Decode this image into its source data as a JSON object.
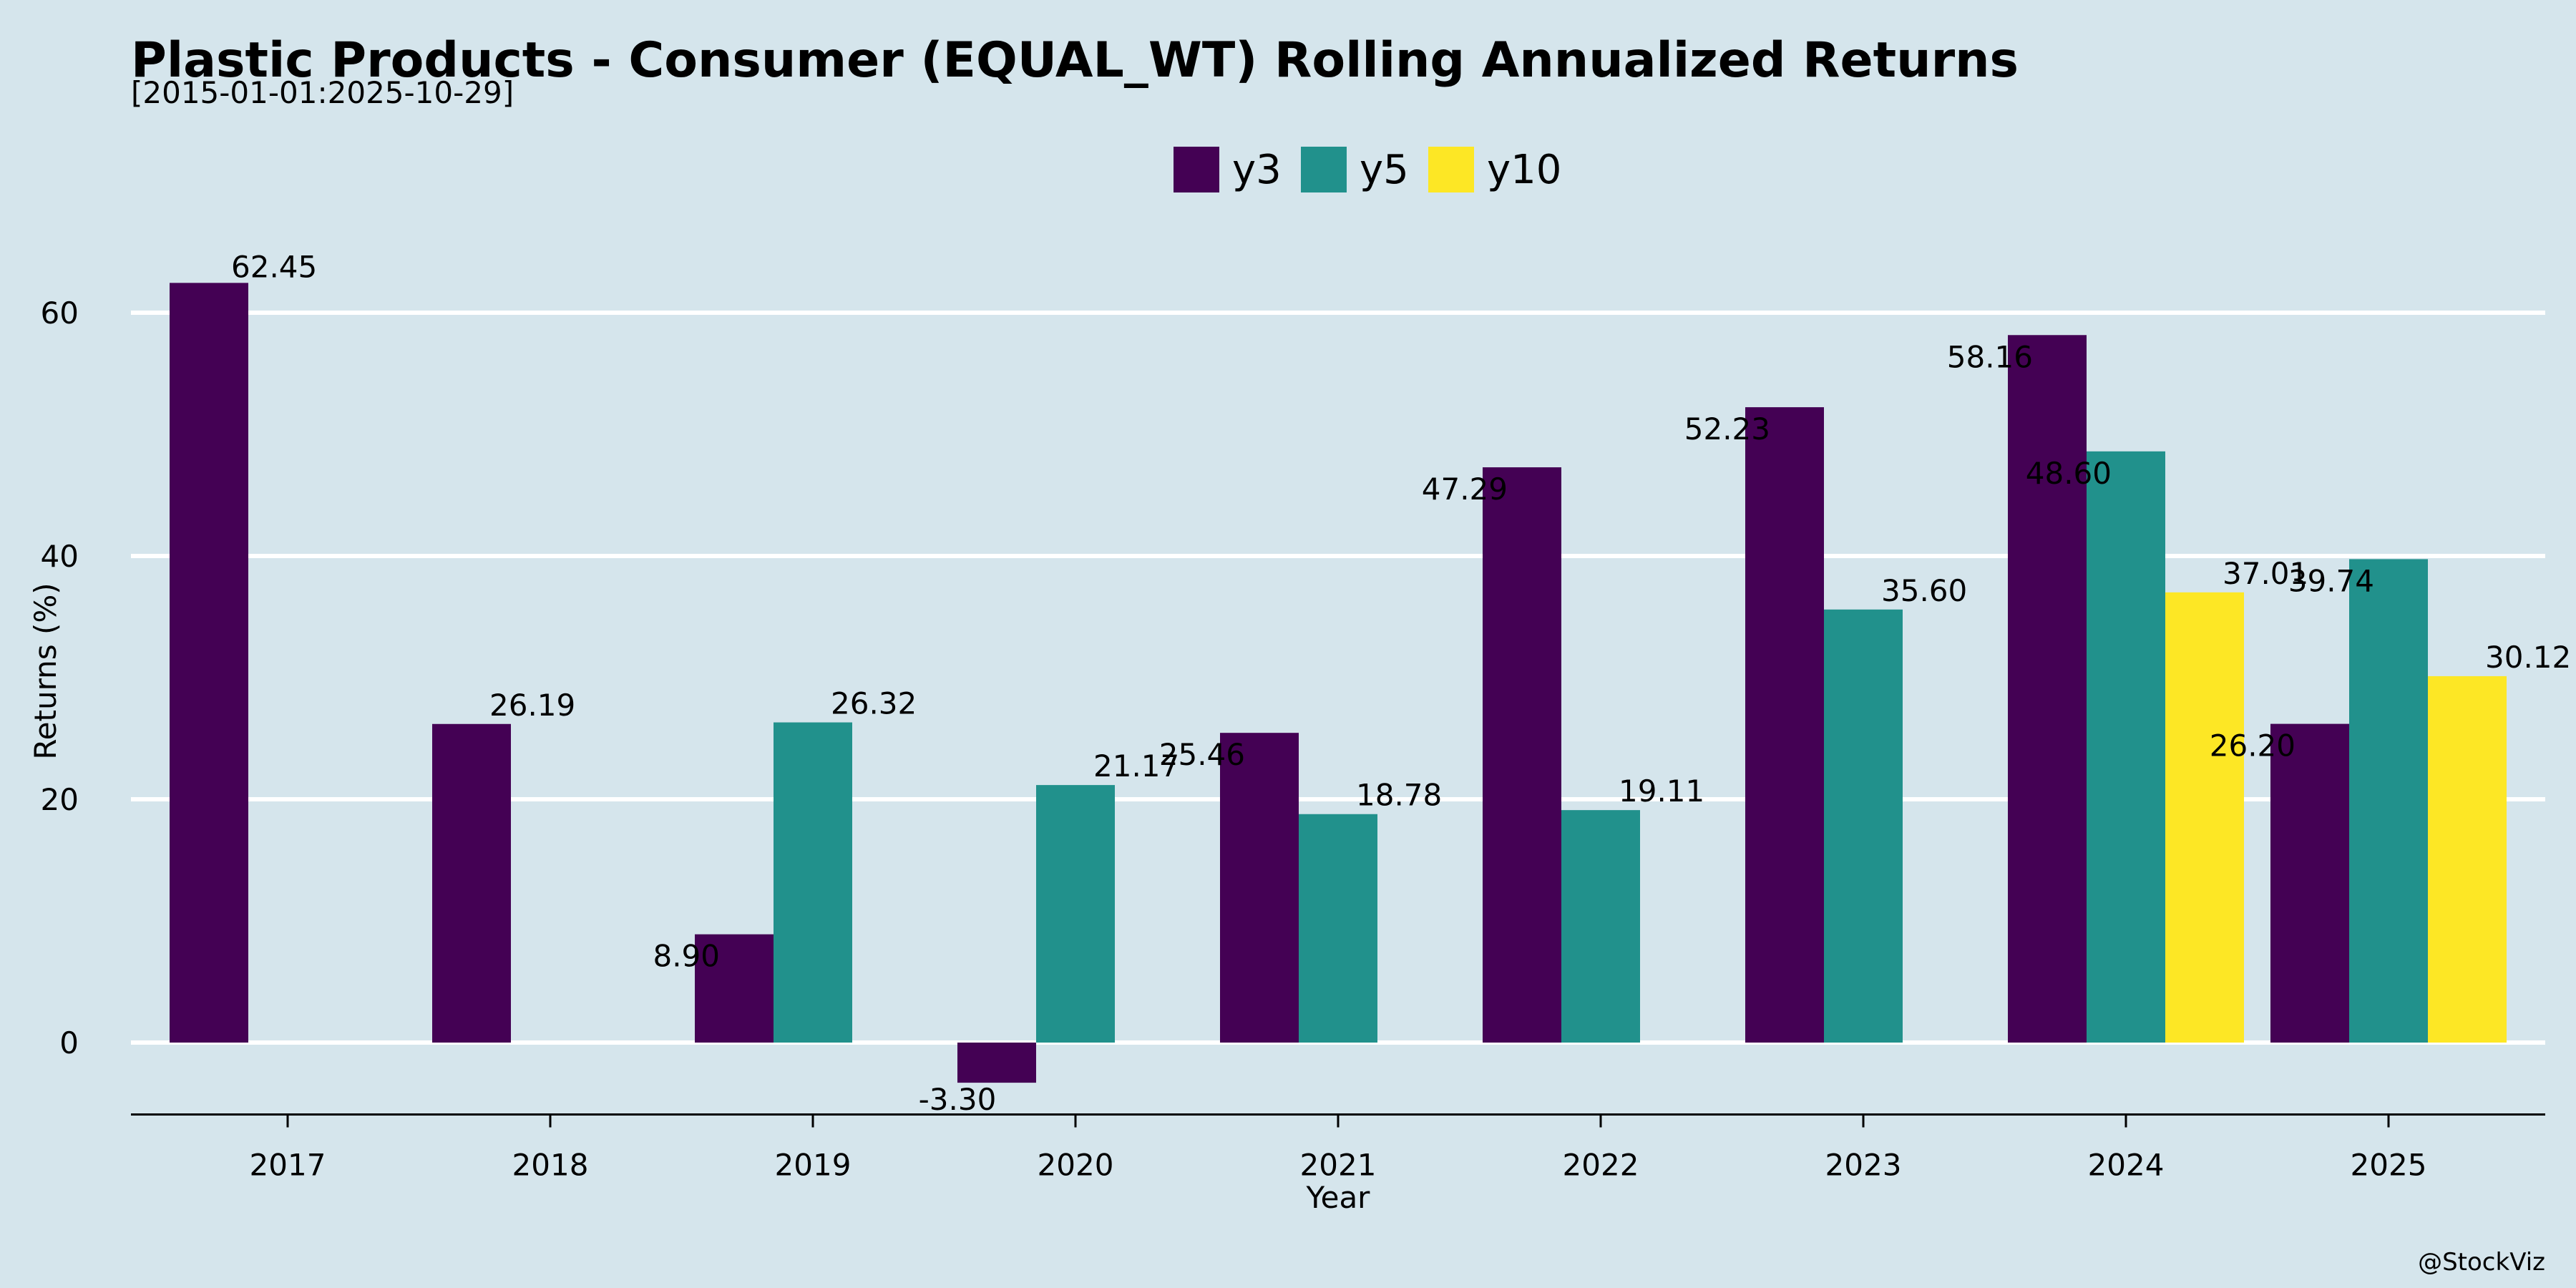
{
  "chart_data": {
    "type": "bar",
    "title": "Plastic Products - Consumer (EQUAL_WT) Rolling Annualized Returns",
    "subtitle": "[2015-01-01:2025-10-29]",
    "xlabel": "Year",
    "ylabel": "Returns (%)",
    "credit": "@StockViz",
    "categories": [
      "2017",
      "2018",
      "2019",
      "2020",
      "2021",
      "2022",
      "2023",
      "2024",
      "2025"
    ],
    "ylim": [
      -6.5,
      72
    ],
    "yticks": [
      0,
      20,
      40,
      60
    ],
    "ytick_labels": [
      "0",
      "20",
      "40",
      "60"
    ],
    "grid": "horizontal",
    "legend_position": "top-center",
    "series": [
      {
        "name": "y3",
        "color": "#440154",
        "values": [
          62.45,
          26.19,
          8.9,
          -3.3,
          25.46,
          47.29,
          52.23,
          58.16,
          26.2
        ],
        "labels": [
          "62.45",
          "26.19",
          "8.90",
          "-3.30",
          "25.46",
          "47.29",
          "52.23",
          "58.16",
          "26.20"
        ]
      },
      {
        "name": "y5",
        "color": "#21918c",
        "values": [
          null,
          null,
          26.32,
          21.17,
          18.78,
          19.11,
          35.6,
          48.6,
          39.74
        ],
        "labels": [
          null,
          null,
          "26.32",
          "21.17",
          "18.78",
          "19.11",
          "35.60",
          "48.60",
          "39.74"
        ]
      },
      {
        "name": "y10",
        "color": "#fde725",
        "values": [
          null,
          null,
          null,
          null,
          null,
          null,
          null,
          37.01,
          30.12
        ],
        "labels": [
          null,
          null,
          null,
          null,
          null,
          null,
          null,
          "37.01",
          "30.12"
        ]
      }
    ]
  }
}
